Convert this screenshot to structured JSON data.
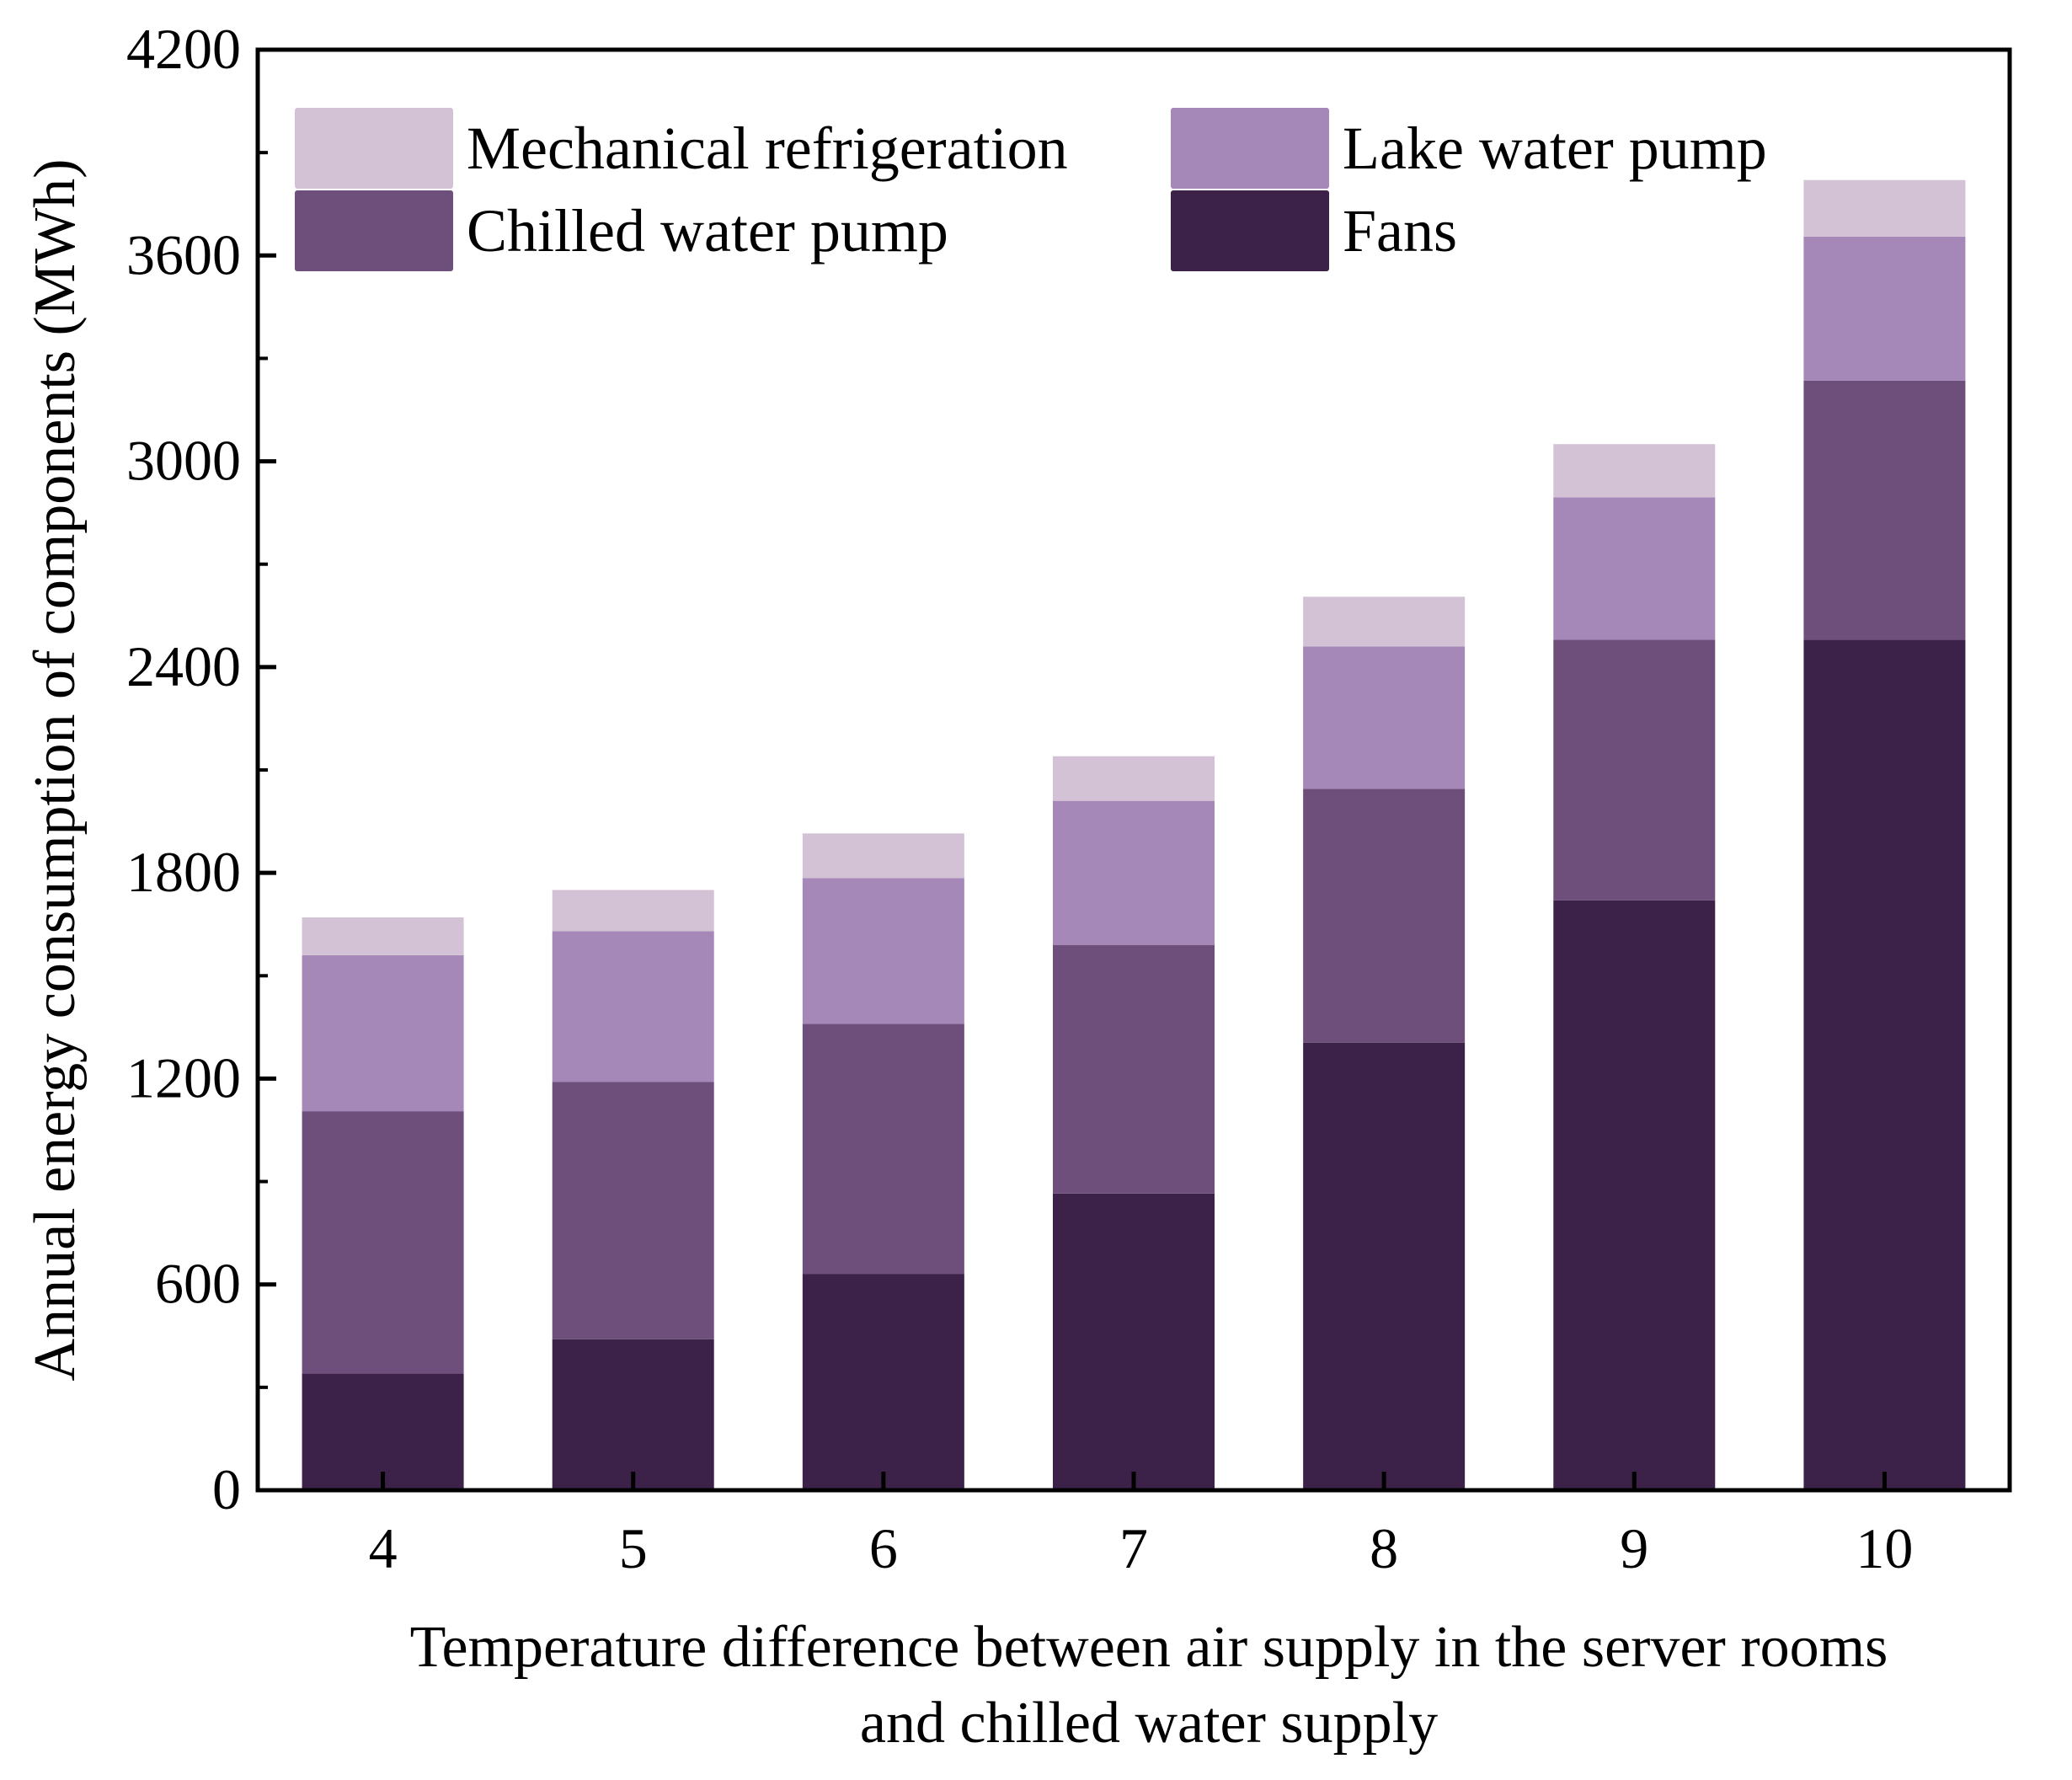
{
  "chart_data": {
    "type": "bar",
    "stacked": true,
    "categories": [
      "4",
      "5",
      "6",
      "7",
      "8",
      "9",
      "10"
    ],
    "series": [
      {
        "name": "Fans",
        "color": "#3c2249",
        "values": [
          340,
          440,
          630,
          865,
          1305,
          1720,
          2480
        ]
      },
      {
        "name": "Chilled water pump",
        "color": "#6e4f7c",
        "values": [
          765,
          750,
          730,
          725,
          740,
          760,
          755
        ]
      },
      {
        "name": "Lake water pump",
        "color": "#a688b8",
        "values": [
          455,
          440,
          425,
          420,
          415,
          415,
          420
        ]
      },
      {
        "name": "Mechanical refrigeration",
        "color": "#d3c2d5",
        "values": [
          110,
          120,
          130,
          130,
          145,
          155,
          165
        ]
      }
    ],
    "legend_order": [
      "Mechanical refrigeration",
      "Lake water pump",
      "Chilled water pump",
      "Fans"
    ],
    "legend_position": "top-left",
    "ylabel": "Annual energy consumption of components (MWh)",
    "xlabel_lines": [
      "Temperature difference between air supply in the server rooms",
      "and chilled water supply"
    ],
    "ylim": [
      0,
      4200
    ],
    "yticks": [
      0,
      600,
      1200,
      1800,
      2400,
      3000,
      3600,
      4200
    ],
    "grid": false
  }
}
